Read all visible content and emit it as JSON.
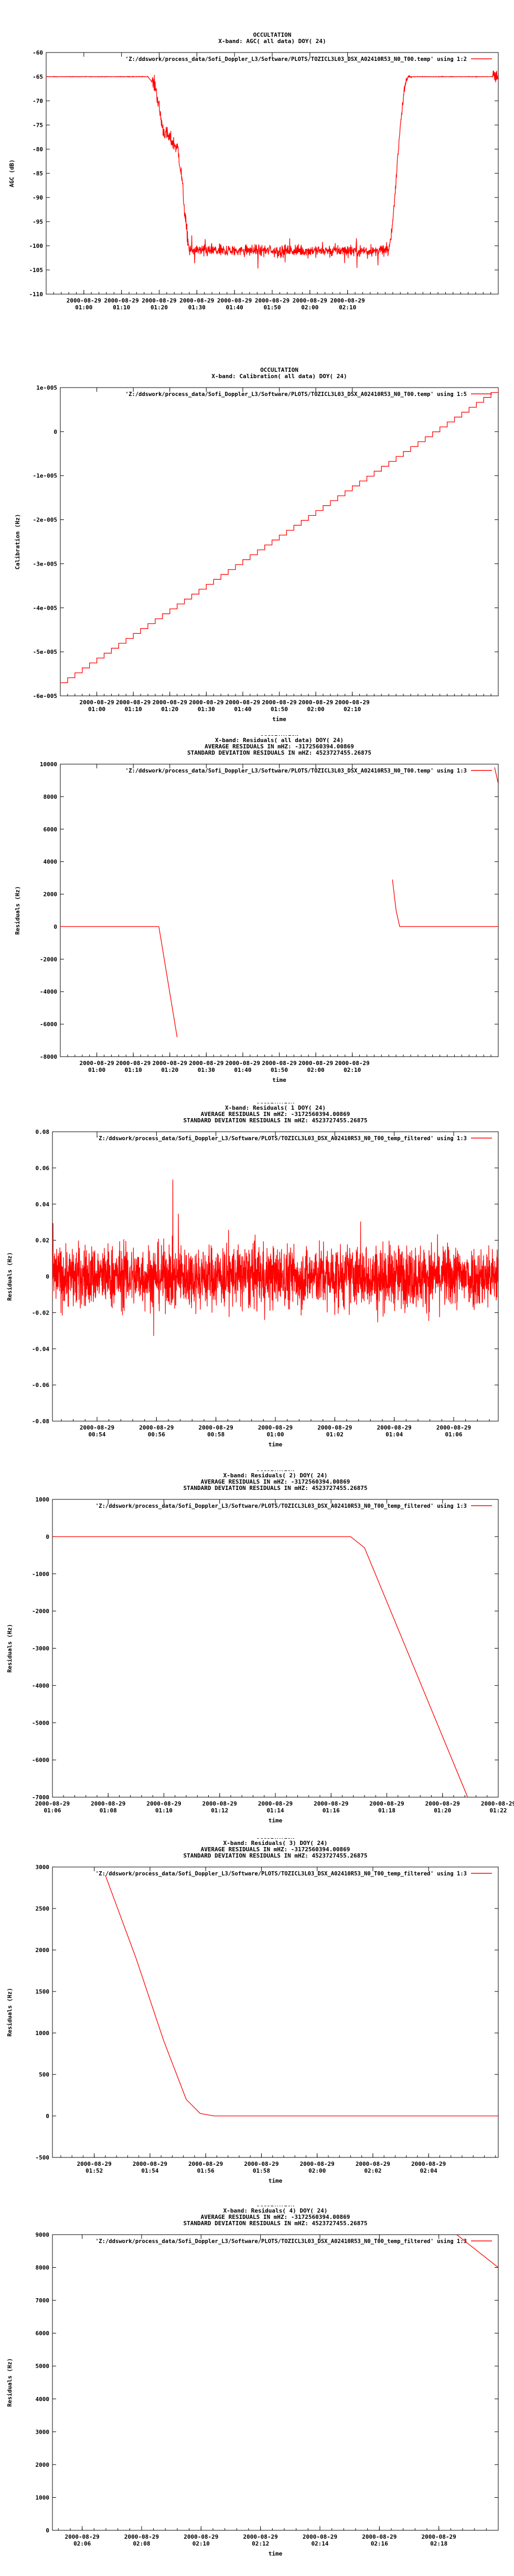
{
  "colors": {
    "series": "#ff0000",
    "axis": "#000000",
    "background": "#ffffff"
  },
  "chart_data": [
    {
      "type": "line",
      "title": [
        "OCCULTATION",
        "X-band: AGC( all data) DOY( 24)"
      ],
      "ylabel": "AGC (dB)",
      "xlabel": "",
      "legend": {
        "label": "'Z:/ddswork/process_data/Sofi_Doppler_L3/Software/PLOTS/TOZICL3L03_DSX_A02410R53_N0_T00.temp' using 1:2",
        "placement": "top-right"
      },
      "ylim": [
        -110,
        -60
      ],
      "yticks": [
        -60,
        -65,
        -70,
        -75,
        -80,
        -85,
        -90,
        -95,
        -100,
        -105,
        -110
      ],
      "xticks": [
        "2000-08-29 01:00",
        "2000-08-29 01:10",
        "2000-08-29 01:20",
        "2000-08-29 01:30",
        "2000-08-29 01:40",
        "2000-08-29 01:50",
        "2000-08-29 02:00",
        "2000-08-29 02:10"
      ],
      "xrange_minutes": [
        50,
        170
      ],
      "series": [
        {
          "shape": "agc",
          "points": [
            [
              50,
              -65
            ],
            [
              77,
              -65
            ],
            [
              79,
              -67
            ],
            [
              81,
              -76
            ],
            [
              83,
              -78
            ],
            [
              85,
              -80
            ],
            [
              86,
              -86
            ],
            [
              87,
              -95
            ],
            [
              88,
              -101
            ],
            [
              110,
              -101
            ],
            [
              130,
              -101
            ],
            [
              141,
              -101
            ],
            [
              142,
              -95
            ],
            [
              143,
              -85
            ],
            [
              144,
              -75
            ],
            [
              145,
              -68
            ],
            [
              146,
              -65
            ],
            [
              170,
              -65
            ]
          ]
        }
      ]
    },
    {
      "type": "line",
      "title": [
        "OCCULTATION",
        "X-band: Calibration( all data) DOY( 24)"
      ],
      "ylabel": "Calibration (Hz)",
      "xlabel": "time",
      "legend": {
        "label": "'Z:/ddswork/process_data/Sofi_Doppler_L3/Software/PLOTS/TOZICL3L03_DSX_A02410R53_N0_T00.temp' using 1:5",
        "placement": "top-right"
      },
      "ylim": [
        -6e-05,
        1e-05
      ],
      "yticks": [
        "1e-005",
        "0",
        "-1e-005",
        "-2e-005",
        "-3e-005",
        "-4e-005",
        "-5e-005",
        "-6e-005"
      ],
      "ytick_values": [
        1e-05,
        0,
        -1e-05,
        -2e-05,
        -3e-05,
        -4e-05,
        -5e-05,
        -6e-05
      ],
      "xticks": [
        "2000-08-29 01:00",
        "2000-08-29 01:10",
        "2000-08-29 01:20",
        "2000-08-29 01:30",
        "2000-08-29 01:40",
        "2000-08-29 01:50",
        "2000-08-29 02:00",
        "2000-08-29 02:10"
      ],
      "xrange_minutes": [
        50,
        170
      ],
      "series": [
        {
          "shape": "staircase",
          "points": [
            [
              50,
              -5.7e-05
            ],
            [
              170,
              1e-05
            ]
          ]
        }
      ]
    },
    {
      "type": "line",
      "title": [
        "OCCULTATION",
        "X-band: Residuals( all data) DOY( 24)",
        "AVERAGE RESIDUALS IN mHZ: -3172560394.00869",
        "STANDARD DEVIATION RESIDUALS IN mHZ: 4523727455.26875"
      ],
      "ylabel": "Residuals (Hz)",
      "xlabel": "time",
      "legend": {
        "label": "'Z:/ddswork/process_data/Sofi_Doppler_L3/Software/PLOTS/TOZICL3L03_DSX_A02410R53_N0_T00.temp' using 1:3",
        "placement": "top-right"
      },
      "ylim": [
        -8000,
        10000
      ],
      "yticks": [
        10000,
        8000,
        6000,
        4000,
        2000,
        0,
        -2000,
        -4000,
        -6000,
        -8000
      ],
      "xticks": [
        "2000-08-29 01:00",
        "2000-08-29 01:10",
        "2000-08-29 01:20",
        "2000-08-29 01:30",
        "2000-08-29 01:40",
        "2000-08-29 01:50",
        "2000-08-29 02:00",
        "2000-08-29 02:10"
      ],
      "xrange_minutes": [
        50,
        170
      ],
      "series": [
        {
          "segments": [
            [
              [
                50,
                0
              ],
              [
                77,
                0
              ],
              [
                82,
                -6800
              ]
            ],
            [
              [
                141,
                2900
              ],
              [
                142,
                1000
              ],
              [
                143,
                0
              ],
              [
                170,
                0
              ]
            ],
            [
              [
                169,
                9800
              ],
              [
                170,
                8800
              ]
            ]
          ]
        }
      ]
    },
    {
      "type": "line",
      "title": [
        "OCCULTATION",
        "X-band: Residuals( 1 DOY( 24)",
        "AVERAGE RESIDUALS IN mHZ: -3172560394.00869",
        "STANDARD DEVIATION RESIDUALS IN mHZ: 4523727455.26875"
      ],
      "ylabel": "Residuals (Hz)",
      "xlabel": "time",
      "legend": {
        "label": "'Z:/ddswork/process_data/Sofi_Doppler_L3/Software/PLOTS/TOZICL3L03_DSX_A02410R53_N0_T00_temp_filtered' using 1:3",
        "placement": "top-right"
      },
      "ylim": [
        -0.08,
        0.08
      ],
      "yticks": [
        "0.08",
        "0.06",
        "0.04",
        "0.02",
        "0",
        "-0.02",
        "-0.04",
        "-0.06",
        "-0.08"
      ],
      "ytick_values": [
        0.08,
        0.06,
        0.04,
        0.02,
        0,
        -0.02,
        -0.04,
        -0.06,
        -0.08
      ],
      "xticks": [
        "2000-08-29 00:54",
        "2000-08-29 00:56",
        "2000-08-29 00:58",
        "2000-08-29 01:00",
        "2000-08-29 01:02",
        "2000-08-29 01:04",
        "2000-08-29 01:06"
      ],
      "xrange_minutes": [
        52.5,
        67.5
      ],
      "series": [
        {
          "shape": "noise",
          "points": [
            [
              52.5,
              0
            ],
            [
              67.5,
              0
            ]
          ]
        }
      ]
    },
    {
      "type": "line",
      "title": [
        "OCCULTATION",
        "X-band: Residuals( 2) DOY( 24)",
        "AVERAGE RESIDUALS IN mHZ: -3172560394.00869",
        "STANDARD DEVIATION RESIDUALS IN mHZ: 4523727455.26875"
      ],
      "ylabel": "Residuals (Hz)",
      "xlabel": "time",
      "legend": {
        "label": "'Z:/ddswork/process_data/Sofi_Doppler_L3/Software/PLOTS/TOZICL3L03_DSX_A02410R53_N0_T00_temp_filtered' using 1:3",
        "placement": "top-right"
      },
      "ylim": [
        -7000,
        1000
      ],
      "yticks": [
        1000,
        0,
        -1000,
        -2000,
        -3000,
        -4000,
        -5000,
        -6000,
        -7000
      ],
      "xticks": [
        "2000-08-29 01:06",
        "2000-08-29 01:08",
        "2000-08-29 01:10",
        "2000-08-29 01:12",
        "2000-08-29 01:14",
        "2000-08-29 01:16",
        "2000-08-29 01:18",
        "2000-08-29 01:20",
        "2000-08-29 01:22"
      ],
      "xrange_minutes": [
        66,
        82
      ],
      "series": [
        {
          "points": [
            [
              66,
              0
            ],
            [
              76.7,
              0
            ],
            [
              77.2,
              -300
            ],
            [
              80.9,
              -7000
            ]
          ]
        }
      ]
    },
    {
      "type": "line",
      "title": [
        "OCCULTATION",
        "X-band: Residuals( 3) DOY( 24)",
        "AVERAGE RESIDUALS IN mHZ: -3172560394.00869",
        "STANDARD DEVIATION RESIDUALS IN mHZ: 4523727455.26875"
      ],
      "ylabel": "Residuals (Hz)",
      "xlabel": "time",
      "legend": {
        "label": "'Z:/ddswork/process_data/Sofi_Doppler_L3/Software/PLOTS/TOZICL3L03_DSX_A02410R53_N0_T00_temp_filtered' using 1:3",
        "placement": "top-right"
      },
      "ylim": [
        -500,
        3000
      ],
      "yticks": [
        3000,
        2500,
        2000,
        1500,
        1000,
        500,
        0,
        -500
      ],
      "xticks": [
        "2000-08-29 01:52",
        "2000-08-29 01:54",
        "2000-08-29 01:56",
        "2000-08-29 01:58",
        "2000-08-29 02:00",
        "2000-08-29 02:02",
        "2000-08-29 02:04"
      ],
      "xrange_minutes": [
        110.5,
        126.5
      ],
      "series": [
        {
          "points": [
            [
              112.4,
              2900
            ],
            [
              113.5,
              1900
            ],
            [
              114.5,
              900
            ],
            [
              115.3,
              200
            ],
            [
              115.8,
              30
            ],
            [
              116.3,
              0
            ],
            [
              126.5,
              0
            ]
          ]
        }
      ]
    },
    {
      "type": "line",
      "title": [
        "OCCULTATION",
        "X-band: Residuals( 4) DOY( 24)",
        "AVERAGE RESIDUALS IN mHZ: -3172560394.00869",
        "STANDARD DEVIATION RESIDUALS IN mHZ: 4523727455.26875"
      ],
      "ylabel": "Residuals (Hz)",
      "xlabel": "time",
      "legend": {
        "label": "'Z:/ddswork/process_data/Sofi_Doppler_L3/Software/PLOTS/TOZICL3L03_DSX_A02410R53_N0_T00_temp_filtered' using 1:3",
        "placement": "top-right"
      },
      "ylim": [
        0,
        9000
      ],
      "yticks": [
        9000,
        8000,
        7000,
        6000,
        5000,
        4000,
        3000,
        2000,
        1000,
        0
      ],
      "xticks": [
        "2000-08-29 02:06",
        "2000-08-29 02:08",
        "2000-08-29 02:10",
        "2000-08-29 02:12",
        "2000-08-29 02:14",
        "2000-08-29 02:16",
        "2000-08-29 02:18"
      ],
      "xrange_minutes": [
        125,
        140
      ],
      "series": [
        {
          "points": [
            [
              138.6,
              9000
            ],
            [
              139.3,
              8500
            ],
            [
              140,
              8000
            ]
          ]
        }
      ]
    }
  ]
}
